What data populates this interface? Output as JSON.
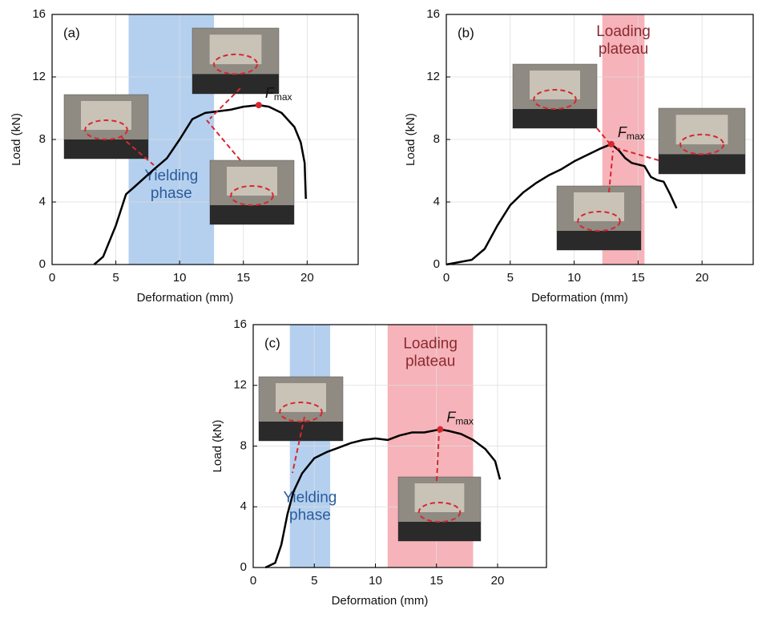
{
  "chart_data": [
    {
      "type": "line",
      "panel_label": "(a)",
      "xlabel": "Deformation (mm)",
      "ylabel": "Load (kN)",
      "xlim": [
        0,
        24
      ],
      "ylim": [
        0,
        16
      ],
      "xticks": [
        0,
        5,
        10,
        15,
        20
      ],
      "yticks": [
        0,
        4,
        8,
        12,
        16
      ],
      "grid": true,
      "color": "#000000",
      "x": [
        3.3,
        4,
        5,
        5.8,
        6.5,
        8,
        9,
        10,
        11,
        12,
        13,
        14,
        15,
        16.2,
        17,
        18,
        19,
        19.5,
        19.8,
        19.9
      ],
      "values": [
        0,
        0.5,
        2.5,
        4.5,
        5,
        6.1,
        6.8,
        8,
        9.3,
        9.7,
        9.8,
        9.9,
        10.1,
        10.2,
        10.1,
        9.7,
        8.8,
        7.8,
        6.5,
        4.2
      ],
      "fmax": {
        "x": 16.2,
        "y": 10.2,
        "text": "F",
        "subscript": "max"
      },
      "regions": [
        {
          "label": [
            "Yielding",
            "phase"
          ],
          "from": 6,
          "to": 12.7,
          "color": "#a8c8ec"
        }
      ]
    },
    {
      "type": "line",
      "panel_label": "(b)",
      "xlabel": "Deformation (mm)",
      "ylabel": "Load (kN)",
      "xlim": [
        0,
        24
      ],
      "ylim": [
        0,
        16
      ],
      "xticks": [
        0,
        5,
        10,
        15,
        20
      ],
      "yticks": [
        0,
        4,
        8,
        12,
        16
      ],
      "grid": true,
      "color": "#000000",
      "x": [
        0,
        2,
        3,
        4,
        5,
        6,
        7,
        8,
        9,
        10,
        11,
        12,
        12.9,
        13.5,
        14,
        14.5,
        15.5,
        16,
        16.5,
        17,
        17.5,
        18
      ],
      "values": [
        0,
        0.3,
        1,
        2.5,
        3.8,
        4.6,
        5.2,
        5.7,
        6.1,
        6.6,
        7,
        7.4,
        7.7,
        7.3,
        6.8,
        6.5,
        6.3,
        5.6,
        5.4,
        5.3,
        4.5,
        3.6
      ],
      "fmax": {
        "x": 12.9,
        "y": 7.7,
        "text": "F",
        "subscript": "max"
      },
      "regions": [
        {
          "label": [
            "Loading",
            "plateau"
          ],
          "from": 12.2,
          "to": 15.5,
          "color": "#f4a6ad"
        }
      ]
    },
    {
      "type": "line",
      "panel_label": "(c)",
      "xlabel": "Deformation (mm)",
      "ylabel": "Load (kN)",
      "xlim": [
        0,
        24
      ],
      "ylim": [
        0,
        16
      ],
      "xticks": [
        0,
        5,
        10,
        15,
        20
      ],
      "yticks": [
        0,
        4,
        8,
        12,
        16
      ],
      "grid": true,
      "color": "#000000",
      "x": [
        1,
        1.8,
        2.3,
        2.8,
        3.3,
        4,
        5,
        6,
        7,
        8,
        9,
        10,
        11,
        12,
        13,
        14,
        15.3,
        16,
        17,
        18,
        19,
        19.8,
        20.2
      ],
      "values": [
        0,
        0.3,
        1.5,
        3.5,
        5,
        6.2,
        7.2,
        7.6,
        7.9,
        8.2,
        8.4,
        8.5,
        8.4,
        8.7,
        8.9,
        8.9,
        9.1,
        9,
        8.8,
        8.4,
        7.8,
        7,
        5.8
      ],
      "fmax": {
        "x": 15.3,
        "y": 9.1,
        "text": "F",
        "subscript": "max"
      },
      "regions": [
        {
          "label": [
            "Yielding",
            "phase"
          ],
          "from": 3,
          "to": 6.3,
          "color": "#a8c8ec"
        },
        {
          "label": [
            "Loading",
            "plateau"
          ],
          "from": 11,
          "to": 18,
          "color": "#f4a6ad"
        }
      ]
    }
  ]
}
